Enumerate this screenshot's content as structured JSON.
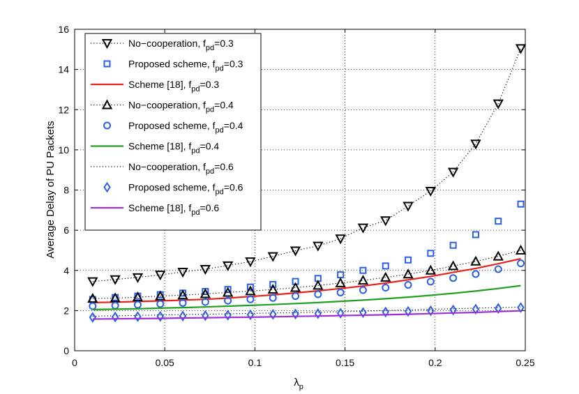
{
  "chart_data": {
    "type": "line",
    "title": "",
    "xlabel": "λ",
    "xlabel_sub": "p",
    "ylabel": "Average Delay of PU Packets",
    "xlim": [
      0,
      0.25
    ],
    "ylim": [
      0,
      16
    ],
    "grid": true,
    "legend_position": "top-left",
    "x_ticks": [
      "0",
      "0.05",
      "0.1",
      "0.15",
      "0.2",
      "0.25"
    ],
    "x_tick_values": [
      0,
      0.05,
      0.1,
      0.15,
      0.2,
      0.25
    ],
    "y_ticks": [
      "0",
      "2",
      "4",
      "6",
      "8",
      "10",
      "12",
      "14",
      "16"
    ],
    "y_tick_values": [
      0,
      2,
      4,
      6,
      8,
      10,
      12,
      14,
      16
    ],
    "x": [
      0.01,
      0.0225,
      0.035,
      0.0475,
      0.06,
      0.0725,
      0.085,
      0.0975,
      0.11,
      0.1225,
      0.135,
      0.1475,
      0.16,
      0.1725,
      0.185,
      0.1975,
      0.21,
      0.2225,
      0.235,
      0.2475
    ],
    "series": [
      {
        "name": "No−cooperation, f",
        "sub": "pd",
        "suffix": "=0.3",
        "style": "dotted-marker",
        "marker": "triangle-down",
        "color": "#000000",
        "values": [
          3.45,
          3.55,
          3.65,
          3.78,
          3.92,
          4.06,
          4.24,
          4.44,
          4.7,
          4.98,
          5.22,
          5.58,
          6.12,
          6.48,
          7.2,
          7.95,
          8.9,
          10.3,
          12.3,
          15.05
        ]
      },
      {
        "name": "Proposed scheme, f",
        "sub": "pd",
        "suffix": "=0.3",
        "style": "marker",
        "marker": "square",
        "color": "#2a5fe0",
        "values": [
          2.55,
          2.65,
          2.72,
          2.79,
          2.87,
          2.95,
          3.05,
          3.17,
          3.3,
          3.45,
          3.6,
          3.78,
          4.0,
          4.22,
          4.52,
          4.85,
          5.25,
          5.78,
          6.45,
          7.3
        ]
      },
      {
        "name": "Scheme [18], f",
        "sub": "pd",
        "suffix": "=0.3",
        "style": "line",
        "marker": "none",
        "color": "#e8211c",
        "values": [
          2.4,
          2.42,
          2.45,
          2.48,
          2.52,
          2.56,
          2.62,
          2.7,
          2.78,
          2.88,
          2.98,
          3.1,
          3.22,
          3.37,
          3.53,
          3.7,
          3.9,
          4.1,
          4.33,
          4.58
        ]
      },
      {
        "name": "No−cooperation, f",
        "sub": "pd",
        "suffix": "=0.4",
        "style": "dotted-marker",
        "marker": "triangle-up",
        "color": "#000000",
        "values": [
          2.6,
          2.62,
          2.67,
          2.72,
          2.77,
          2.83,
          2.9,
          2.97,
          3.05,
          3.14,
          3.25,
          3.37,
          3.5,
          3.65,
          3.81,
          4.0,
          4.22,
          4.45,
          4.7,
          5.0
        ]
      },
      {
        "name": "Proposed scheme, f",
        "sub": "pd",
        "suffix": "=0.4",
        "style": "marker",
        "marker": "circle",
        "color": "#2a5fe0",
        "values": [
          2.22,
          2.25,
          2.29,
          2.33,
          2.38,
          2.43,
          2.49,
          2.56,
          2.63,
          2.72,
          2.81,
          2.9,
          3.02,
          3.14,
          3.28,
          3.44,
          3.62,
          3.82,
          4.06,
          4.35
        ]
      },
      {
        "name": "Scheme [18], f",
        "sub": "pd",
        "suffix": "=0.4",
        "style": "line",
        "marker": "none",
        "color": "#1ea01e",
        "values": [
          2.05,
          2.07,
          2.09,
          2.12,
          2.15,
          2.18,
          2.22,
          2.26,
          2.3,
          2.35,
          2.4,
          2.46,
          2.52,
          2.59,
          2.67,
          2.76,
          2.86,
          2.97,
          3.1,
          3.24
        ]
      },
      {
        "name": "No−cooperation, f",
        "sub": "pd",
        "suffix": "=0.6",
        "style": "dotted",
        "marker": "none",
        "color": "#000000",
        "values": [
          1.72,
          1.74,
          1.76,
          1.78,
          1.8,
          1.82,
          1.84,
          1.86,
          1.88,
          1.9,
          1.92,
          1.94,
          1.97,
          2.0,
          2.03,
          2.06,
          2.09,
          2.12,
          2.15,
          2.18
        ]
      },
      {
        "name": "Proposed scheme, f",
        "sub": "pd",
        "suffix": "=0.6",
        "style": "marker",
        "marker": "diamond",
        "color": "#2a5fe0",
        "values": [
          1.66,
          1.68,
          1.7,
          1.71,
          1.73,
          1.75,
          1.77,
          1.79,
          1.81,
          1.83,
          1.85,
          1.87,
          1.9,
          1.93,
          1.96,
          1.99,
          2.03,
          2.07,
          2.11,
          2.15
        ]
      },
      {
        "name": "Scheme [18], f",
        "sub": "pd",
        "suffix": "=0.6",
        "style": "line",
        "marker": "none",
        "color": "#9b30d9",
        "values": [
          1.58,
          1.59,
          1.6,
          1.61,
          1.63,
          1.64,
          1.66,
          1.67,
          1.69,
          1.71,
          1.73,
          1.75,
          1.77,
          1.79,
          1.82,
          1.85,
          1.88,
          1.91,
          1.95,
          1.99
        ]
      }
    ]
  }
}
